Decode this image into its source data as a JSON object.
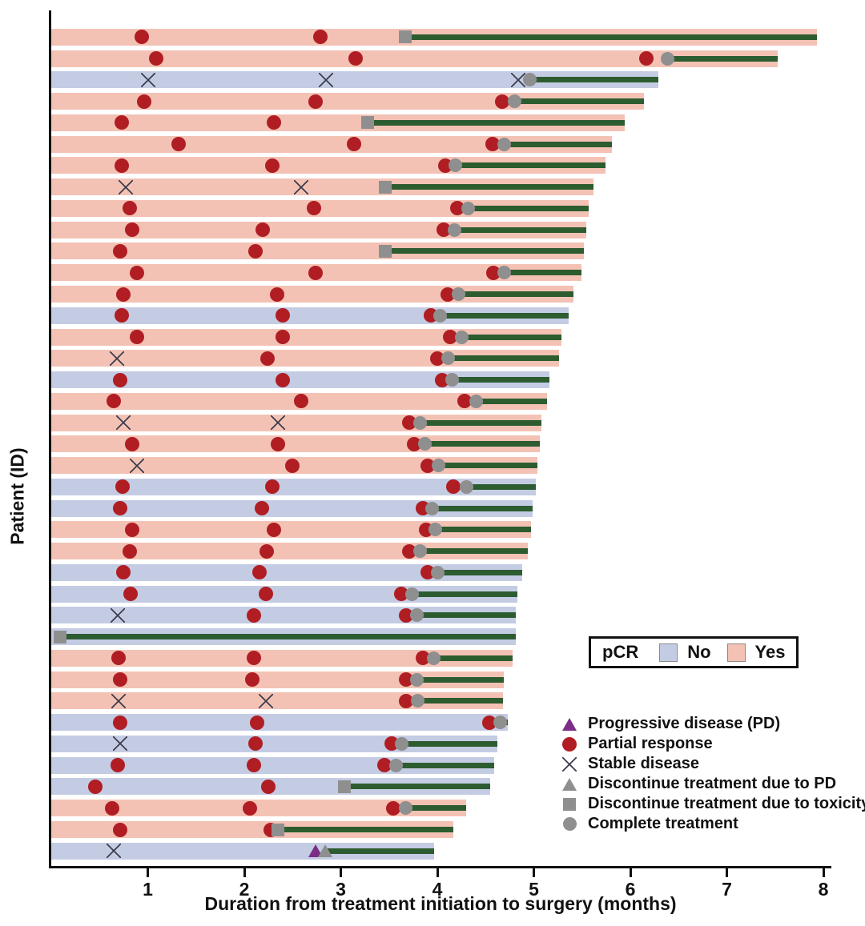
{
  "chart_data": {
    "type": "bar",
    "variant": "swimmer-plot",
    "title": "",
    "xlabel": "Duration from treatment initiation to surgery (months)",
    "ylabel": "Patient (ID)",
    "xlim": [
      0,
      8
    ],
    "x_ticks": [
      1,
      2,
      3,
      4,
      5,
      6,
      7,
      8
    ],
    "grid": false,
    "colors": {
      "pcr_yes_bar": "#f3c2b4",
      "pcr_no_bar": "#c4cce4",
      "treatment_line": "#2d5c31",
      "partial_response": "#b01e23",
      "progressive_disease": "#7b2e86",
      "gray_marker": "#8f8f8f",
      "stable_disease_x": "#3d3d4d",
      "axis": "#111111"
    },
    "pcr_legend": {
      "title": "pCR",
      "items": [
        {
          "label": "No",
          "color": "#c4cce4"
        },
        {
          "label": "Yes",
          "color": "#f3c2b4"
        }
      ]
    },
    "marker_legend": [
      {
        "marker": "progressive_disease",
        "label": "Progressive disease (PD)"
      },
      {
        "marker": "partial_response",
        "label": "Partial response"
      },
      {
        "marker": "stable_disease",
        "label": "Stable disease"
      },
      {
        "marker": "discontinue_pd",
        "label": "Discontinue treatment due to PD"
      },
      {
        "marker": "discontinue_toxicity",
        "label": "Discontinue treatment due to toxicity"
      },
      {
        "marker": "complete_treatment",
        "label": "Complete treatment"
      }
    ],
    "patients": [
      {
        "pcr": "Yes",
        "end": 7.93,
        "line_start": 3.67,
        "markers": [
          {
            "t": "partial_response",
            "x": 0.94
          },
          {
            "t": "partial_response",
            "x": 2.79
          },
          {
            "t": "discontinue_toxicity",
            "x": 3.67
          }
        ]
      },
      {
        "pcr": "Yes",
        "end": 7.53,
        "line_start": 6.39,
        "markers": [
          {
            "t": "partial_response",
            "x": 1.09
          },
          {
            "t": "partial_response",
            "x": 3.15
          },
          {
            "t": "partial_response",
            "x": 6.17
          },
          {
            "t": "complete_treatment",
            "x": 6.39
          }
        ]
      },
      {
        "pcr": "No",
        "end": 6.29,
        "line_start": 4.96,
        "markers": [
          {
            "t": "stable_disease",
            "x": 1.0
          },
          {
            "t": "stable_disease",
            "x": 2.85
          },
          {
            "t": "stable_disease",
            "x": 4.84
          },
          {
            "t": "complete_treatment",
            "x": 4.96
          }
        ]
      },
      {
        "pcr": "Yes",
        "end": 6.14,
        "line_start": 4.8,
        "markers": [
          {
            "t": "partial_response",
            "x": 0.96
          },
          {
            "t": "partial_response",
            "x": 2.74
          },
          {
            "t": "partial_response",
            "x": 4.67
          },
          {
            "t": "complete_treatment",
            "x": 4.8
          }
        ]
      },
      {
        "pcr": "Yes",
        "end": 5.94,
        "line_start": 3.28,
        "markers": [
          {
            "t": "partial_response",
            "x": 0.73
          },
          {
            "t": "partial_response",
            "x": 2.31
          },
          {
            "t": "discontinue_toxicity",
            "x": 3.28
          }
        ]
      },
      {
        "pcr": "Yes",
        "end": 5.81,
        "line_start": 4.69,
        "markers": [
          {
            "t": "partial_response",
            "x": 1.32
          },
          {
            "t": "partial_response",
            "x": 3.14
          },
          {
            "t": "partial_response",
            "x": 4.57
          },
          {
            "t": "complete_treatment",
            "x": 4.69
          }
        ]
      },
      {
        "pcr": "Yes",
        "end": 5.74,
        "line_start": 4.19,
        "markers": [
          {
            "t": "partial_response",
            "x": 0.73
          },
          {
            "t": "partial_response",
            "x": 2.29
          },
          {
            "t": "partial_response",
            "x": 4.08
          },
          {
            "t": "complete_treatment",
            "x": 4.19
          }
        ]
      },
      {
        "pcr": "Yes",
        "end": 5.62,
        "line_start": 3.46,
        "markers": [
          {
            "t": "stable_disease",
            "x": 0.77
          },
          {
            "t": "stable_disease",
            "x": 2.59
          },
          {
            "t": "discontinue_toxicity",
            "x": 3.46
          }
        ]
      },
      {
        "pcr": "Yes",
        "end": 5.57,
        "line_start": 4.32,
        "markers": [
          {
            "t": "partial_response",
            "x": 0.81
          },
          {
            "t": "partial_response",
            "x": 2.72
          },
          {
            "t": "partial_response",
            "x": 4.21
          },
          {
            "t": "complete_treatment",
            "x": 4.32
          }
        ]
      },
      {
        "pcr": "Yes",
        "end": 5.54,
        "line_start": 4.18,
        "markers": [
          {
            "t": "partial_response",
            "x": 0.84
          },
          {
            "t": "partial_response",
            "x": 2.19
          },
          {
            "t": "partial_response",
            "x": 4.07
          },
          {
            "t": "complete_treatment",
            "x": 4.18
          }
        ]
      },
      {
        "pcr": "Yes",
        "end": 5.52,
        "line_start": 3.46,
        "markers": [
          {
            "t": "partial_response",
            "x": 0.71
          },
          {
            "t": "partial_response",
            "x": 2.12
          },
          {
            "t": "discontinue_toxicity",
            "x": 3.46
          }
        ]
      },
      {
        "pcr": "Yes",
        "end": 5.49,
        "line_start": 4.69,
        "markers": [
          {
            "t": "partial_response",
            "x": 0.89
          },
          {
            "t": "partial_response",
            "x": 2.74
          },
          {
            "t": "partial_response",
            "x": 4.58
          },
          {
            "t": "complete_treatment",
            "x": 4.69
          }
        ]
      },
      {
        "pcr": "Yes",
        "end": 5.41,
        "line_start": 4.22,
        "markers": [
          {
            "t": "partial_response",
            "x": 0.75
          },
          {
            "t": "partial_response",
            "x": 2.34
          },
          {
            "t": "partial_response",
            "x": 4.11
          },
          {
            "t": "complete_treatment",
            "x": 4.22
          }
        ]
      },
      {
        "pcr": "No",
        "end": 5.36,
        "line_start": 4.03,
        "markers": [
          {
            "t": "partial_response",
            "x": 0.73
          },
          {
            "t": "partial_response",
            "x": 2.4
          },
          {
            "t": "partial_response",
            "x": 3.93
          },
          {
            "t": "complete_treatment",
            "x": 4.03
          }
        ]
      },
      {
        "pcr": "Yes",
        "end": 5.29,
        "line_start": 4.25,
        "markers": [
          {
            "t": "partial_response",
            "x": 0.89
          },
          {
            "t": "partial_response",
            "x": 2.4
          },
          {
            "t": "partial_response",
            "x": 4.13
          },
          {
            "t": "complete_treatment",
            "x": 4.25
          }
        ]
      },
      {
        "pcr": "Yes",
        "end": 5.26,
        "line_start": 4.11,
        "markers": [
          {
            "t": "stable_disease",
            "x": 0.68
          },
          {
            "t": "partial_response",
            "x": 2.24
          },
          {
            "t": "partial_response",
            "x": 4.0
          },
          {
            "t": "complete_treatment",
            "x": 4.11
          }
        ]
      },
      {
        "pcr": "No",
        "end": 5.16,
        "line_start": 4.15,
        "markers": [
          {
            "t": "partial_response",
            "x": 0.71
          },
          {
            "t": "partial_response",
            "x": 2.4
          },
          {
            "t": "partial_response",
            "x": 4.05
          },
          {
            "t": "complete_treatment",
            "x": 4.15
          }
        ]
      },
      {
        "pcr": "Yes",
        "end": 5.14,
        "line_start": 4.4,
        "markers": [
          {
            "t": "partial_response",
            "x": 0.65
          },
          {
            "t": "partial_response",
            "x": 2.59
          },
          {
            "t": "partial_response",
            "x": 4.28
          },
          {
            "t": "complete_treatment",
            "x": 4.4
          }
        ]
      },
      {
        "pcr": "Yes",
        "end": 5.08,
        "line_start": 3.82,
        "markers": [
          {
            "t": "stable_disease",
            "x": 0.75
          },
          {
            "t": "stable_disease",
            "x": 2.35
          },
          {
            "t": "partial_response",
            "x": 3.71
          },
          {
            "t": "complete_treatment",
            "x": 3.82
          }
        ]
      },
      {
        "pcr": "Yes",
        "end": 5.06,
        "line_start": 3.87,
        "markers": [
          {
            "t": "partial_response",
            "x": 0.84
          },
          {
            "t": "partial_response",
            "x": 2.35
          },
          {
            "t": "partial_response",
            "x": 3.76
          },
          {
            "t": "complete_treatment",
            "x": 3.87
          }
        ]
      },
      {
        "pcr": "Yes",
        "end": 5.04,
        "line_start": 4.01,
        "markers": [
          {
            "t": "stable_disease",
            "x": 0.89
          },
          {
            "t": "partial_response",
            "x": 2.5
          },
          {
            "t": "partial_response",
            "x": 3.9
          },
          {
            "t": "complete_treatment",
            "x": 4.01
          }
        ]
      },
      {
        "pcr": "No",
        "end": 5.02,
        "line_start": 4.3,
        "markers": [
          {
            "t": "partial_response",
            "x": 0.74
          },
          {
            "t": "partial_response",
            "x": 2.29
          },
          {
            "t": "partial_response",
            "x": 4.17
          },
          {
            "t": "complete_treatment",
            "x": 4.3
          }
        ]
      },
      {
        "pcr": "No",
        "end": 4.99,
        "line_start": 3.95,
        "markers": [
          {
            "t": "partial_response",
            "x": 0.71
          },
          {
            "t": "partial_response",
            "x": 2.18
          },
          {
            "t": "partial_response",
            "x": 3.85
          },
          {
            "t": "complete_treatment",
            "x": 3.95
          }
        ]
      },
      {
        "pcr": "Yes",
        "end": 4.97,
        "line_start": 3.98,
        "markers": [
          {
            "t": "partial_response",
            "x": 0.84
          },
          {
            "t": "partial_response",
            "x": 2.31
          },
          {
            "t": "partial_response",
            "x": 3.88
          },
          {
            "t": "complete_treatment",
            "x": 3.98
          }
        ]
      },
      {
        "pcr": "Yes",
        "end": 4.94,
        "line_start": 3.82,
        "markers": [
          {
            "t": "partial_response",
            "x": 0.81
          },
          {
            "t": "partial_response",
            "x": 2.23
          },
          {
            "t": "partial_response",
            "x": 3.71
          },
          {
            "t": "complete_treatment",
            "x": 3.82
          }
        ]
      },
      {
        "pcr": "No",
        "end": 4.88,
        "line_start": 4.0,
        "markers": [
          {
            "t": "partial_response",
            "x": 0.75
          },
          {
            "t": "partial_response",
            "x": 2.16
          },
          {
            "t": "partial_response",
            "x": 3.9
          },
          {
            "t": "complete_treatment",
            "x": 4.0
          }
        ]
      },
      {
        "pcr": "No",
        "end": 4.83,
        "line_start": 3.74,
        "markers": [
          {
            "t": "partial_response",
            "x": 0.82
          },
          {
            "t": "partial_response",
            "x": 2.22
          },
          {
            "t": "partial_response",
            "x": 3.63
          },
          {
            "t": "complete_treatment",
            "x": 3.74
          }
        ]
      },
      {
        "pcr": "No",
        "end": 4.81,
        "line_start": 3.79,
        "markers": [
          {
            "t": "stable_disease",
            "x": 0.69
          },
          {
            "t": "partial_response",
            "x": 2.1
          },
          {
            "t": "partial_response",
            "x": 3.68
          },
          {
            "t": "complete_treatment",
            "x": 3.79
          }
        ]
      },
      {
        "pcr": "No",
        "end": 4.81,
        "line_start": 0.09,
        "markers": [
          {
            "t": "discontinue_toxicity",
            "x": 0.09
          }
        ]
      },
      {
        "pcr": "Yes",
        "end": 4.78,
        "line_start": 3.96,
        "markers": [
          {
            "t": "partial_response",
            "x": 0.7
          },
          {
            "t": "partial_response",
            "x": 2.1
          },
          {
            "t": "partial_response",
            "x": 3.85
          },
          {
            "t": "complete_treatment",
            "x": 3.96
          }
        ]
      },
      {
        "pcr": "Yes",
        "end": 4.69,
        "line_start": 3.79,
        "markers": [
          {
            "t": "partial_response",
            "x": 0.71
          },
          {
            "t": "partial_response",
            "x": 2.08
          },
          {
            "t": "partial_response",
            "x": 3.68
          },
          {
            "t": "complete_treatment",
            "x": 3.79
          }
        ]
      },
      {
        "pcr": "Yes",
        "end": 4.68,
        "line_start": 3.8,
        "markers": [
          {
            "t": "stable_disease",
            "x": 0.7
          },
          {
            "t": "stable_disease",
            "x": 2.22
          },
          {
            "t": "partial_response",
            "x": 3.68
          },
          {
            "t": "complete_treatment",
            "x": 3.8
          }
        ]
      },
      {
        "pcr": "No",
        "end": 4.73,
        "line_start": 4.65,
        "markers": [
          {
            "t": "partial_response",
            "x": 0.71
          },
          {
            "t": "partial_response",
            "x": 2.13
          },
          {
            "t": "partial_response",
            "x": 4.54
          },
          {
            "t": "complete_treatment",
            "x": 4.65
          }
        ]
      },
      {
        "pcr": "No",
        "end": 4.62,
        "line_start": 3.63,
        "markers": [
          {
            "t": "stable_disease",
            "x": 0.71
          },
          {
            "t": "partial_response",
            "x": 2.12
          },
          {
            "t": "partial_response",
            "x": 3.53
          },
          {
            "t": "complete_treatment",
            "x": 3.63
          }
        ]
      },
      {
        "pcr": "No",
        "end": 4.59,
        "line_start": 3.57,
        "markers": [
          {
            "t": "partial_response",
            "x": 0.69
          },
          {
            "t": "partial_response",
            "x": 2.1
          },
          {
            "t": "partial_response",
            "x": 3.45
          },
          {
            "t": "complete_treatment",
            "x": 3.57
          }
        ]
      },
      {
        "pcr": "No",
        "end": 4.55,
        "line_start": 3.04,
        "markers": [
          {
            "t": "partial_response",
            "x": 0.46
          },
          {
            "t": "partial_response",
            "x": 2.25
          },
          {
            "t": "discontinue_toxicity",
            "x": 3.04
          }
        ]
      },
      {
        "pcr": "Yes",
        "end": 4.3,
        "line_start": 3.67,
        "markers": [
          {
            "t": "partial_response",
            "x": 0.63
          },
          {
            "t": "partial_response",
            "x": 2.06
          },
          {
            "t": "partial_response",
            "x": 3.54
          },
          {
            "t": "complete_treatment",
            "x": 3.67
          }
        ]
      },
      {
        "pcr": "Yes",
        "end": 4.17,
        "line_start": 2.35,
        "markers": [
          {
            "t": "partial_response",
            "x": 0.71
          },
          {
            "t": "partial_response",
            "x": 2.27
          },
          {
            "t": "discontinue_toxicity",
            "x": 2.35
          }
        ]
      },
      {
        "pcr": "No",
        "end": 3.97,
        "line_start": 2.84,
        "markers": [
          {
            "t": "stable_disease",
            "x": 0.65
          },
          {
            "t": "progressive_disease",
            "x": 2.74
          },
          {
            "t": "discontinue_pd",
            "x": 2.84
          }
        ]
      }
    ]
  }
}
